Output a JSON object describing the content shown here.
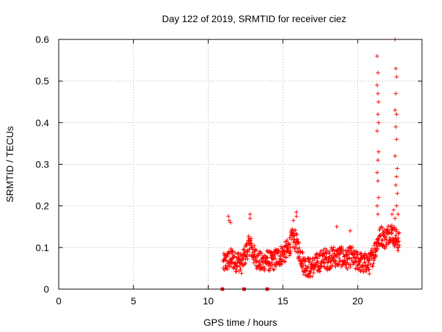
{
  "chart_data": {
    "type": "scatter",
    "title": "Day 122 of 2019, SRMTID for receiver ciez",
    "xlabel": "GPS time / hours",
    "ylabel": "SRMTID / TECUs",
    "xlim": [
      0,
      24.3
    ],
    "ylim": [
      0,
      0.6
    ],
    "xticks": [
      0,
      5,
      10,
      15,
      20
    ],
    "yticks": [
      0,
      0.1,
      0.2,
      0.3,
      0.4,
      0.5,
      0.6
    ],
    "xtick_labels": [
      "0",
      "5",
      "10",
      "15",
      "20"
    ],
    "ytick_labels": [
      "0",
      "0.1",
      "0.2",
      "0.3",
      "0.4",
      "0.5",
      "0.6"
    ],
    "grid": true,
    "legend": "none",
    "marker": "+",
    "color": "#ff0000",
    "zero_markers": {
      "marker": "square",
      "x": [
        10.95,
        12.4,
        13.95
      ],
      "y": 0
    },
    "series": [
      {
        "name": "SRMTID",
        "profile": [
          [
            11.0,
            0.06
          ],
          [
            11.2,
            0.065
          ],
          [
            11.4,
            0.07
          ],
          [
            11.6,
            0.075
          ],
          [
            11.8,
            0.065
          ],
          [
            12.0,
            0.07
          ],
          [
            12.2,
            0.06
          ],
          [
            12.4,
            0.075
          ],
          [
            12.6,
            0.095
          ],
          [
            12.8,
            0.11
          ],
          [
            13.0,
            0.085
          ],
          [
            13.2,
            0.075
          ],
          [
            13.4,
            0.07
          ],
          [
            13.6,
            0.06
          ],
          [
            13.8,
            0.07
          ],
          [
            14.0,
            0.07
          ],
          [
            14.2,
            0.065
          ],
          [
            14.4,
            0.07
          ],
          [
            14.6,
            0.075
          ],
          [
            14.8,
            0.08
          ],
          [
            15.0,
            0.085
          ],
          [
            15.2,
            0.09
          ],
          [
            15.4,
            0.1
          ],
          [
            15.6,
            0.12
          ],
          [
            15.8,
            0.12
          ],
          [
            16.0,
            0.1
          ],
          [
            16.2,
            0.08
          ],
          [
            16.4,
            0.06
          ],
          [
            16.6,
            0.055
          ],
          [
            16.8,
            0.05
          ],
          [
            17.0,
            0.055
          ],
          [
            17.2,
            0.06
          ],
          [
            17.4,
            0.065
          ],
          [
            17.6,
            0.07
          ],
          [
            17.8,
            0.075
          ],
          [
            18.0,
            0.07
          ],
          [
            18.2,
            0.075
          ],
          [
            18.4,
            0.08
          ],
          [
            18.6,
            0.075
          ],
          [
            18.8,
            0.08
          ],
          [
            19.0,
            0.075
          ],
          [
            19.2,
            0.07
          ],
          [
            19.4,
            0.075
          ],
          [
            19.6,
            0.08
          ],
          [
            19.8,
            0.065
          ],
          [
            20.0,
            0.07
          ],
          [
            20.2,
            0.065
          ],
          [
            20.4,
            0.06
          ],
          [
            20.6,
            0.065
          ],
          [
            20.8,
            0.06
          ],
          [
            21.0,
            0.08
          ],
          [
            21.2,
            0.1
          ],
          [
            21.4,
            0.12
          ],
          [
            21.6,
            0.13
          ],
          [
            21.8,
            0.12
          ],
          [
            22.0,
            0.13
          ],
          [
            22.2,
            0.14
          ],
          [
            22.4,
            0.13
          ],
          [
            22.6,
            0.12
          ],
          [
            22.8,
            0.11
          ]
        ],
        "spikes": [
          [
            12.8,
            0.18
          ],
          [
            12.8,
            0.17
          ],
          [
            11.35,
            0.175
          ],
          [
            11.4,
            0.165
          ],
          [
            15.9,
            0.185
          ],
          [
            15.9,
            0.175
          ],
          [
            15.7,
            0.165
          ],
          [
            18.6,
            0.15
          ],
          [
            19.5,
            0.14
          ],
          [
            11.5,
            0.16
          ],
          [
            21.3,
            0.56
          ],
          [
            21.35,
            0.52
          ],
          [
            21.3,
            0.49
          ],
          [
            21.35,
            0.47
          ],
          [
            21.4,
            0.45
          ],
          [
            21.35,
            0.42
          ],
          [
            21.4,
            0.4
          ],
          [
            21.3,
            0.38
          ],
          [
            21.4,
            0.33
          ],
          [
            21.35,
            0.31
          ],
          [
            21.3,
            0.28
          ],
          [
            21.35,
            0.26
          ],
          [
            21.4,
            0.22
          ],
          [
            21.3,
            0.2
          ],
          [
            21.35,
            0.18
          ],
          [
            22.5,
            0.6
          ],
          [
            22.55,
            0.53
          ],
          [
            22.6,
            0.51
          ],
          [
            22.55,
            0.47
          ],
          [
            22.5,
            0.43
          ],
          [
            22.6,
            0.42
          ],
          [
            22.55,
            0.39
          ],
          [
            22.6,
            0.36
          ],
          [
            22.5,
            0.32
          ],
          [
            22.65,
            0.29
          ],
          [
            22.6,
            0.27
          ],
          [
            22.55,
            0.25
          ],
          [
            22.65,
            0.23
          ],
          [
            22.6,
            0.2
          ],
          [
            22.4,
            0.19
          ],
          [
            22.7,
            0.18
          ],
          [
            22.5,
            0.17
          ],
          [
            22.3,
            0.18
          ]
        ]
      }
    ]
  }
}
